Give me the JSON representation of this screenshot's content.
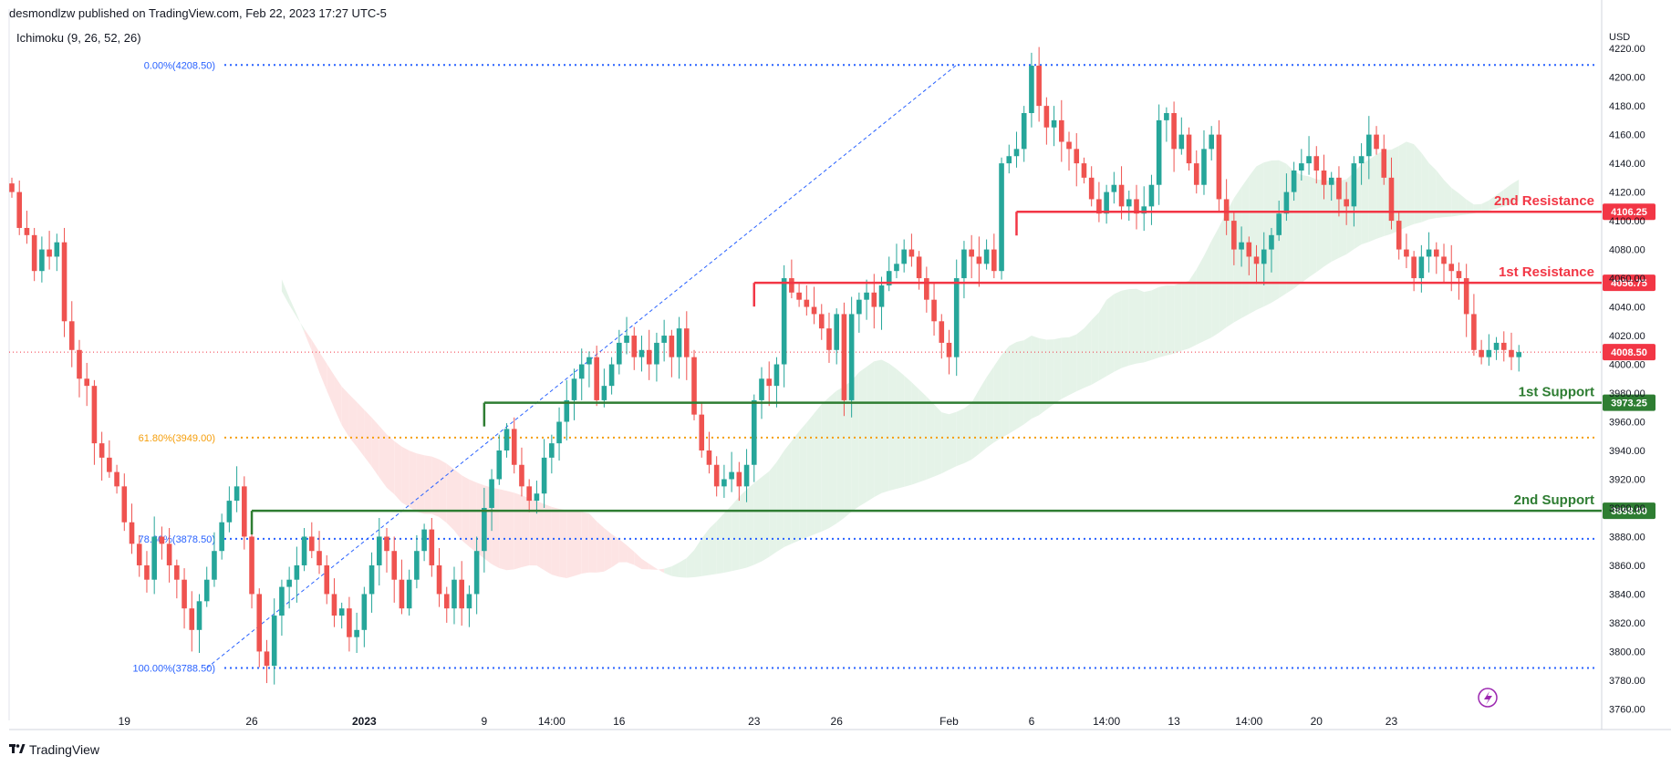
{
  "header": {
    "published": "desmondlzw published on TradingView.com, Feb 22, 2023 17:27 UTC-5",
    "indicator": "Ichimoku (9, 26, 52, 26)"
  },
  "footer": {
    "brand": "TradingView",
    "logo": "tv-logo-icon"
  },
  "colors": {
    "up": "#26a69a",
    "down": "#ef5350",
    "resistance": "#f23645",
    "support": "#2e7d32",
    "fib_blue": "#2962ff",
    "fib_orange": "#f59e0b",
    "cloud_green": "#e5f3e8",
    "cloud_red": "#fde4e4",
    "price_line": "#f23645"
  },
  "chart_data": {
    "type": "candlestick",
    "currency": "USD",
    "ylim": [
      3752,
      4222
    ],
    "y_ticks": [
      3760,
      3780,
      3800,
      3820,
      3840,
      3860,
      3880,
      3900,
      3920,
      3940,
      3960,
      3980,
      4000,
      4020,
      4040,
      4060,
      4080,
      4100,
      4120,
      4140,
      4160,
      4180,
      4200,
      4220
    ],
    "x_ticks": [
      {
        "label": "19",
        "i": 15,
        "bold": false
      },
      {
        "label": "26",
        "i": 32,
        "bold": false
      },
      {
        "label": "2023",
        "i": 47,
        "bold": true
      },
      {
        "label": "9",
        "i": 63,
        "bold": false
      },
      {
        "label": "14:00",
        "i": 72,
        "bold": false
      },
      {
        "label": "16",
        "i": 81,
        "bold": false
      },
      {
        "label": "23",
        "i": 99,
        "bold": false
      },
      {
        "label": "26",
        "i": 110,
        "bold": false
      },
      {
        "label": "Feb",
        "i": 125,
        "bold": false
      },
      {
        "label": "6",
        "i": 136,
        "bold": false
      },
      {
        "label": "14:00",
        "i": 146,
        "bold": false
      },
      {
        "label": "13",
        "i": 155,
        "bold": false
      },
      {
        "label": "14:00",
        "i": 165,
        "bold": false
      },
      {
        "label": "20",
        "i": 174,
        "bold": false
      },
      {
        "label": "23",
        "i": 184,
        "bold": false
      }
    ],
    "closes": [
      4120,
      4095,
      4090,
      4065,
      4080,
      4075,
      4085,
      4030,
      4010,
      3990,
      3985,
      3945,
      3935,
      3925,
      3915,
      3890,
      3875,
      3860,
      3850,
      3880,
      3875,
      3860,
      3850,
      3830,
      3815,
      3835,
      3850,
      3870,
      3890,
      3905,
      3915,
      3880,
      3840,
      3800,
      3790,
      3825,
      3845,
      3850,
      3860,
      3880,
      3870,
      3860,
      3840,
      3825,
      3830,
      3810,
      3815,
      3840,
      3860,
      3880,
      3870,
      3850,
      3830,
      3850,
      3870,
      3885,
      3860,
      3840,
      3830,
      3850,
      3830,
      3840,
      3870,
      3900,
      3920,
      3940,
      3955,
      3930,
      3915,
      3905,
      3910,
      3935,
      3945,
      3960,
      3975,
      3990,
      4000,
      4005,
      3975,
      3985,
      4000,
      4015,
      4020,
      4005,
      4010,
      4000,
      4015,
      4020,
      4005,
      4025,
      4005,
      3965,
      3940,
      3930,
      3915,
      3920,
      3925,
      3915,
      3930,
      3975,
      3990,
      3985,
      4000,
      4060,
      4050,
      4045,
      4040,
      4035,
      4025,
      4010,
      4035,
      3975,
      4035,
      4045,
      4050,
      4040,
      4055,
      4065,
      4070,
      4080,
      4075,
      4060,
      4045,
      4030,
      4015,
      4005,
      4060,
      4080,
      4075,
      4070,
      4080,
      4065,
      4140,
      4145,
      4150,
      4175,
      4208,
      4180,
      4165,
      4170,
      4155,
      4150,
      4140,
      4130,
      4115,
      4105,
      4120,
      4125,
      4110,
      4115,
      4105,
      4110,
      4125,
      4170,
      4175,
      4150,
      4160,
      4140,
      4125,
      4150,
      4160,
      4115,
      4100,
      4080,
      4085,
      4075,
      4070,
      4080,
      4090,
      4105,
      4120,
      4135,
      4140,
      4145,
      4135,
      4125,
      4130,
      4115,
      4110,
      4140,
      4145,
      4160,
      4150,
      4130,
      4100,
      4080,
      4075,
      4060,
      4075,
      4080,
      4075,
      4070,
      4065,
      4060,
      4035,
      4010,
      4005,
      4010,
      4015,
      4010,
      4005,
      4008.5
    ],
    "levels": [
      {
        "label": "2nd Resistance",
        "value": 4106.25,
        "price_label": "4106.25",
        "kind": "resistance",
        "start_i": 134
      },
      {
        "label": "1st Resistance",
        "value": 4056.75,
        "price_label": "4056.75",
        "kind": "resistance",
        "start_i": 99
      },
      {
        "label": "1st Support",
        "value": 3973.25,
        "price_label": "3973.25",
        "kind": "support",
        "start_i": 63
      },
      {
        "label": "2nd Support",
        "value": 3898.0,
        "price_label": "3898.00",
        "kind": "support",
        "start_i": 32
      }
    ],
    "fibonacci": [
      {
        "label": "0.00%(4208.50)",
        "value": 4208.5,
        "color": "blue"
      },
      {
        "label": "61.80%(3949.00)",
        "value": 3949.0,
        "color": "orange"
      },
      {
        "label": "78.60%(3878.50)",
        "value": 3878.5,
        "color": "blue"
      },
      {
        "label": "100.00%(3788.50)",
        "value": 3788.5,
        "color": "blue"
      }
    ],
    "fib_trend": {
      "from_i": 26,
      "from_value": 3788.5,
      "to_i": 126,
      "to_value": 4208.5
    },
    "last_price": {
      "value": 4008.5,
      "label": "4008.50"
    }
  }
}
